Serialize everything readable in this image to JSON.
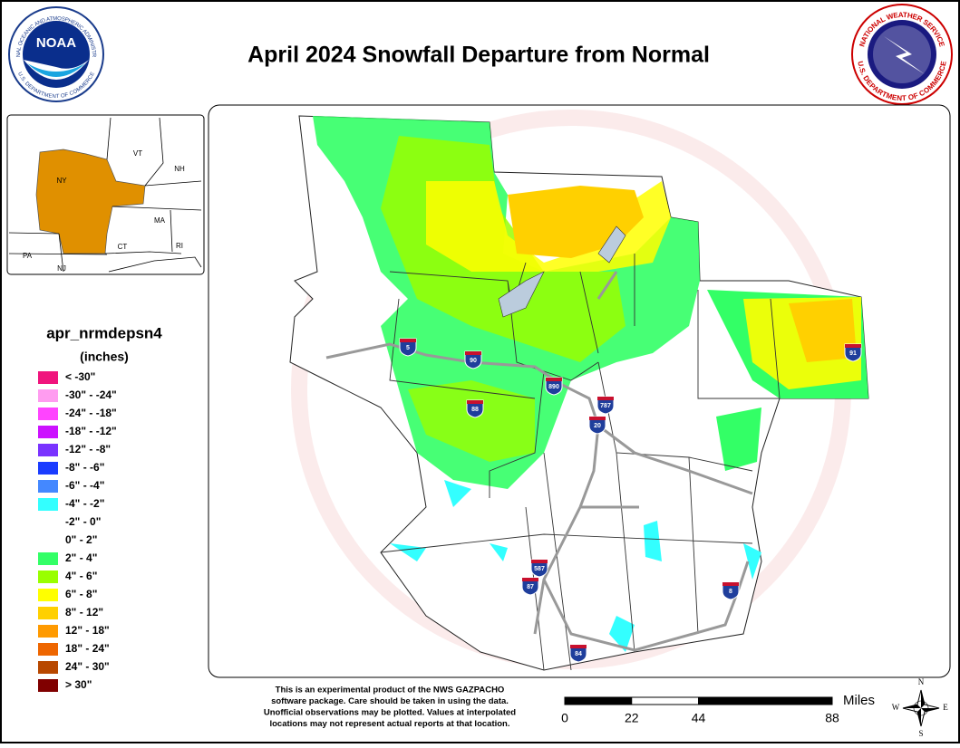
{
  "header": {
    "title": "April 2024 Snowfall Departure from Normal",
    "noaa_logo": {
      "name": "NOAA",
      "ring_top": "NATIONAL OCEANIC AND ATMOSPHERIC ADMINISTRATION",
      "ring_bottom": "U.S. DEPARTMENT OF COMMERCE"
    },
    "nws_logo": {
      "ring_top": "NATIONAL WEATHER SERVICE",
      "ring_bottom": "U.S. DEPARTMENT OF COMMERCE"
    }
  },
  "inset": {
    "labels": [
      "VT",
      "NH",
      "NY",
      "MA",
      "CT",
      "RI",
      "PA",
      "NJ"
    ]
  },
  "legend": {
    "title": "apr_nrmdepsn4",
    "units": "(inches)",
    "items": [
      {
        "label": "< -30\"",
        "color": "#f0147d"
      },
      {
        "label": "-30\" - -24\"",
        "color": "#ff9cf0"
      },
      {
        "label": "-24\" - -18\"",
        "color": "#ff44ff"
      },
      {
        "label": "-18\" - -12\"",
        "color": "#cc11ff"
      },
      {
        "label": "-12\" - -8\"",
        "color": "#7a33ff"
      },
      {
        "label": "-8\" - -6\"",
        "color": "#1a3cff"
      },
      {
        "label": "-6\" - -4\"",
        "color": "#4488ff"
      },
      {
        "label": "-4\" - -2\"",
        "color": "#33ffff"
      },
      {
        "label": "-2\" - 0\""
      },
      {
        "label": "0\" - 2\""
      },
      {
        "label": "2\" - 4\"",
        "color": "#33ff66"
      },
      {
        "label": "4\" - 6\"",
        "color": "#99ff00"
      },
      {
        "label": "6\" - 8\"",
        "color": "#ffff00"
      },
      {
        "label": "8\" - 12\"",
        "color": "#ffd000"
      },
      {
        "label": "12\" - 18\"",
        "color": "#ff9a00"
      },
      {
        "label": "18\" - 24\"",
        "color": "#ee6600"
      },
      {
        "label": "24\" - 30\"",
        "color": "#b84800"
      },
      {
        "label": "> 30\"",
        "color": "#800000"
      }
    ]
  },
  "map": {
    "interstates": [
      "5",
      "90",
      "890",
      "787",
      "20",
      "88",
      "91",
      "587",
      "87",
      "84",
      "8"
    ]
  },
  "disclaimer": [
    "This is an experimental product of the NWS GAZPACHO",
    "software package. Care should be taken in using the data.",
    "Unofficial observations may be plotted. Values at interpolated",
    "locations may not represent actual reports at that location."
  ],
  "scale": {
    "ticks": [
      0,
      22,
      44,
      88
    ],
    "unit": "Miles"
  },
  "compass": [
    "N",
    "E",
    "S",
    "W"
  ]
}
